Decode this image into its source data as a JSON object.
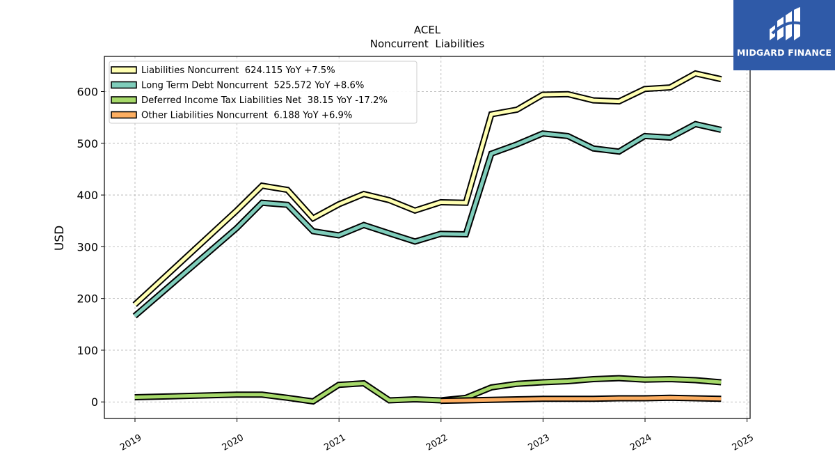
{
  "logo": {
    "text": "MIDGARD FINANCE"
  },
  "chart_data": {
    "type": "line",
    "title": "ACEL",
    "subtitle": "Noncurrent  Liabilities",
    "ylabel": "USD",
    "xlabel": "",
    "ylim": [
      -32,
      668
    ],
    "xlim": [
      2018.7,
      2025.03
    ],
    "yticks": [
      0,
      100,
      200,
      300,
      400,
      500,
      600
    ],
    "xticks": [
      "2019",
      "2020",
      "2021",
      "2022",
      "2023",
      "2024",
      "2025"
    ],
    "grid": true,
    "legend_position": "top-left",
    "series": [
      {
        "name": "Liabilities Noncurrent",
        "legend": "Liabilities Noncurrent  624.115 YoY +7.5%",
        "color": "#ffffb2",
        "x": [
          "2018-12-31",
          "2019-12-31",
          "2020-03-31",
          "2020-06-30",
          "2020-09-30",
          "2020-12-31",
          "2021-03-31",
          "2021-06-30",
          "2021-09-30",
          "2021-12-31",
          "2022-03-31",
          "2022-06-30",
          "2022-09-30",
          "2022-12-31",
          "2023-03-31",
          "2023-06-30",
          "2023-09-30",
          "2023-12-31",
          "2024-03-31",
          "2024-06-30",
          "2024-09-30"
        ],
        "y": [
          188,
          370,
          418,
          410,
          355,
          382,
          402,
          390,
          370,
          386,
          385,
          556,
          565,
          594,
          595,
          583,
          581,
          605,
          608,
          635,
          624
        ]
      },
      {
        "name": "Long Term Debt Noncurrent",
        "legend": "Long Term Debt Noncurrent  525.572 YoY +8.6%",
        "color": "#7fcdbb",
        "x": [
          "2018-12-31",
          "2019-12-31",
          "2020-03-31",
          "2020-06-30",
          "2020-09-30",
          "2020-12-31",
          "2021-03-31",
          "2021-06-30",
          "2021-09-30",
          "2021-12-31",
          "2022-03-31",
          "2022-06-30",
          "2022-09-30",
          "2022-12-31",
          "2023-03-31",
          "2023-06-30",
          "2023-09-30",
          "2023-12-31",
          "2024-03-31",
          "2024-06-30",
          "2024-09-30"
        ],
        "y": [
          166,
          336,
          385,
          381,
          330,
          322,
          342,
          326,
          310,
          325,
          324,
          480,
          498,
          519,
          514,
          490,
          484,
          514,
          511,
          537,
          526
        ]
      },
      {
        "name": "Deferred Income Tax Liabilities Net",
        "legend": "Deferred Income Tax Liabilities Net  38.15 YoY -17.2%",
        "color": "#a6d96a",
        "x": [
          "2018-12-31",
          "2019-12-31",
          "2020-03-31",
          "2020-06-30",
          "2020-09-30",
          "2020-12-31",
          "2021-03-31",
          "2021-06-30",
          "2021-09-30",
          "2021-12-31",
          "2022-03-31",
          "2022-06-30",
          "2022-09-30",
          "2022-12-31",
          "2023-03-31",
          "2023-06-30",
          "2023-09-30",
          "2023-12-31",
          "2024-03-31",
          "2024-06-30",
          "2024-09-30"
        ],
        "y": [
          9,
          14,
          14,
          8,
          1,
          33,
          36,
          3,
          5,
          3,
          8,
          28,
          35,
          38,
          40,
          44,
          46,
          43,
          44,
          42,
          38
        ]
      },
      {
        "name": "Other Liabilities Noncurrent",
        "legend": "Other Liabilities Noncurrent  6.188 YoY +6.9%",
        "color": "#fdae61",
        "x": [
          "2021-12-31",
          "2022-03-31",
          "2022-06-30",
          "2022-09-30",
          "2022-12-31",
          "2023-03-31",
          "2023-06-30",
          "2023-09-30",
          "2023-12-31",
          "2024-03-31",
          "2024-06-30",
          "2024-09-30"
        ],
        "y": [
          2,
          3,
          4,
          5,
          6,
          6,
          6,
          7,
          7,
          8,
          7,
          6
        ]
      }
    ]
  }
}
